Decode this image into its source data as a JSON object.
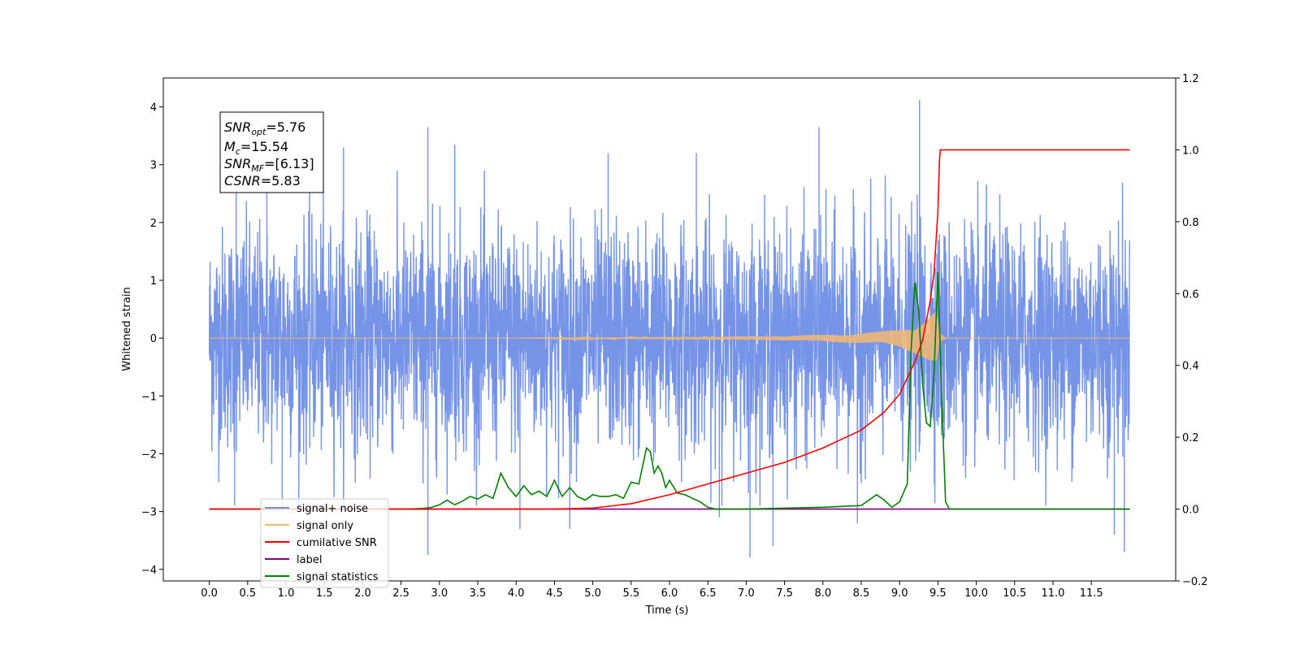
{
  "chart_data": {
    "type": "line",
    "xlabel": "Time (s)",
    "ylabel": "Whitened strain",
    "xlim": [
      -0.6,
      12.6
    ],
    "ylim": [
      -4.2,
      4.5
    ],
    "y2lim": [
      -0.2,
      1.2
    ],
    "x_ticks": [
      "0.0",
      "0.5",
      "1.0",
      "1.5",
      "2.0",
      "2.5",
      "3.0",
      "3.5",
      "4.0",
      "4.5",
      "5.0",
      "5.5",
      "6.0",
      "6.5",
      "7.0",
      "7.5",
      "8.0",
      "8.5",
      "9.0",
      "9.5",
      "10.0",
      "10.5",
      "11.0",
      "11.5"
    ],
    "x_tick_values": [
      0,
      0.5,
      1,
      1.5,
      2,
      2.5,
      3,
      3.5,
      4,
      4.5,
      5,
      5.5,
      6,
      6.5,
      7,
      7.5,
      8,
      8.5,
      9,
      9.5,
      10,
      10.5,
      11,
      11.5
    ],
    "y_ticks": [
      "4",
      "3",
      "2",
      "1",
      "0",
      "−1",
      "−2",
      "−3",
      "−4"
    ],
    "y_tick_values": [
      4,
      3,
      2,
      1,
      0,
      -1,
      -2,
      -3,
      -4
    ],
    "y2_ticks": [
      "1.2",
      "1.0",
      "0.8",
      "0.6",
      "0.4",
      "0.2",
      "0.0",
      "−0.2"
    ],
    "y2_tick_values": [
      1.2,
      1.0,
      0.8,
      0.6,
      0.4,
      0.2,
      0.0,
      -0.2
    ],
    "grid": false,
    "legend_position": "lower-left",
    "annotation": {
      "snr_opt_base": "SNR",
      "snr_opt_sub": "opt",
      "snr_opt_value": "=5.76",
      "mc_base": "M",
      "mc_sub": "c",
      "mc_value": "=15.54",
      "snr_mf_base": "SNR",
      "snr_mf_sub": "MF",
      "snr_mf_value": "=[6.13]",
      "csnr_base": "CSNR",
      "csnr_value": "=5.83"
    },
    "noise_spikes": [
      {
        "x": 0.33,
        "y": -2.9
      },
      {
        "x": 0.35,
        "y": 2.8
      },
      {
        "x": 0.75,
        "y": 3.1
      },
      {
        "x": 1.75,
        "y": 3.3
      },
      {
        "x": 2.85,
        "y": 3.65
      },
      {
        "x": 2.85,
        "y": -3.75
      },
      {
        "x": 3.2,
        "y": 3.35
      },
      {
        "x": 4.05,
        "y": -3.3
      },
      {
        "x": 4.7,
        "y": -3.3
      },
      {
        "x": 6.65,
        "y": -3.1
      },
      {
        "x": 7.05,
        "y": -3.8
      },
      {
        "x": 7.35,
        "y": -3.6
      },
      {
        "x": 7.95,
        "y": 3.65
      },
      {
        "x": 8.45,
        "y": -3.2
      },
      {
        "x": 9.26,
        "y": 4.12
      },
      {
        "x": 11.8,
        "y": -3.4
      },
      {
        "x": 11.93,
        "y": -3.7
      },
      {
        "x": 0.95,
        "y": -3.0
      },
      {
        "x": 5.2,
        "y": 3.2
      },
      {
        "x": 6.35,
        "y": 3.2
      }
    ],
    "series": [
      {
        "name": "signal+ noise",
        "color": "#6f8ee6",
        "axis": "left",
        "x_range": [
          0.0,
          12.0
        ],
        "envelope": [
          -1.7,
          1.7
        ]
      },
      {
        "name": "signal only",
        "color": "#f5b970",
        "axis": "left",
        "x": [
          0.0,
          4.0,
          5.0,
          6.0,
          7.0,
          7.5,
          8.0,
          8.5,
          8.8,
          9.0,
          9.2,
          9.3,
          9.4,
          9.48,
          9.5,
          9.52,
          9.6,
          12.0
        ],
        "amplitude": [
          0.0,
          0.0,
          0.01,
          0.02,
          0.03,
          0.04,
          0.06,
          0.09,
          0.12,
          0.16,
          0.26,
          0.33,
          0.43,
          0.5,
          0.3,
          0.1,
          0.0,
          0.0
        ]
      },
      {
        "name": "cumilative SNR",
        "color": "#ff0000",
        "axis": "right",
        "x": [
          0.0,
          4.5,
          5.0,
          5.5,
          6.0,
          6.5,
          7.0,
          7.5,
          8.0,
          8.5,
          8.8,
          9.0,
          9.2,
          9.3,
          9.4,
          9.45,
          9.5,
          9.52,
          9.53,
          12.0
        ],
        "y": [
          0.0,
          0.0,
          0.003,
          0.015,
          0.04,
          0.07,
          0.1,
          0.13,
          0.17,
          0.22,
          0.27,
          0.32,
          0.41,
          0.47,
          0.58,
          0.66,
          0.83,
          0.97,
          1.0,
          1.0
        ]
      },
      {
        "name": "label",
        "color": "#800080",
        "axis": "right",
        "x": [
          0.0,
          12.0
        ],
        "y": [
          0.0,
          0.0
        ]
      },
      {
        "name": "signal statistics",
        "color": "#008000",
        "axis": "right",
        "x": [
          0.0,
          2.6,
          2.8,
          2.9,
          3.0,
          3.1,
          3.2,
          3.3,
          3.4,
          3.5,
          3.6,
          3.7,
          3.8,
          3.9,
          4.0,
          4.1,
          4.2,
          4.3,
          4.4,
          4.5,
          4.6,
          4.7,
          4.8,
          4.9,
          5.0,
          5.1,
          5.2,
          5.3,
          5.4,
          5.5,
          5.6,
          5.7,
          5.75,
          5.8,
          5.85,
          5.9,
          5.95,
          6.0,
          6.1,
          6.2,
          6.3,
          6.4,
          6.5,
          6.6,
          6.7,
          7.0,
          8.0,
          8.5,
          8.7,
          8.8,
          8.9,
          9.0,
          9.1,
          9.15,
          9.2,
          9.25,
          9.3,
          9.35,
          9.4,
          9.45,
          9.5,
          9.55,
          9.6,
          9.65,
          12.0
        ],
        "y": [
          0.0,
          0.0,
          0.002,
          0.005,
          0.012,
          0.025,
          0.012,
          0.022,
          0.035,
          0.028,
          0.04,
          0.03,
          0.1,
          0.06,
          0.035,
          0.065,
          0.04,
          0.05,
          0.035,
          0.08,
          0.035,
          0.06,
          0.035,
          0.025,
          0.04,
          0.035,
          0.035,
          0.04,
          0.03,
          0.075,
          0.07,
          0.17,
          0.16,
          0.1,
          0.12,
          0.1,
          0.06,
          0.08,
          0.045,
          0.04,
          0.03,
          0.02,
          0.005,
          0.0,
          0.0,
          0.0,
          0.005,
          0.01,
          0.04,
          0.025,
          0.005,
          0.02,
          0.07,
          0.44,
          0.63,
          0.55,
          0.35,
          0.24,
          0.23,
          0.38,
          0.66,
          0.3,
          0.02,
          0.0,
          0.0
        ]
      }
    ]
  }
}
